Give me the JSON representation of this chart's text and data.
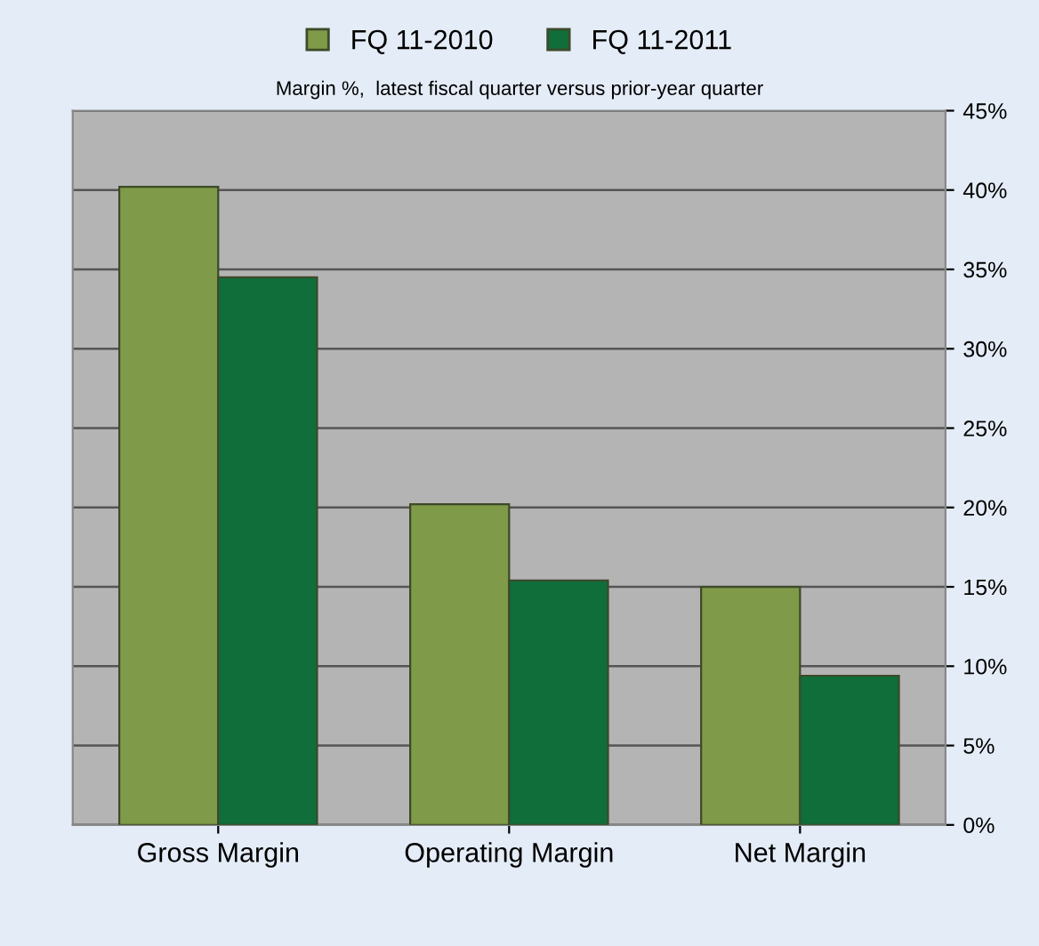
{
  "chart_data": {
    "type": "bar",
    "subtitle": "Margin %,  latest fiscal quarter versus prior-year quarter",
    "categories": [
      "Gross Margin",
      "Operating Margin",
      "Net Margin"
    ],
    "series": [
      {
        "name": "FQ 11-2010",
        "color": "#7f9a48",
        "values": [
          40.2,
          20.2,
          15.0
        ]
      },
      {
        "name": "FQ 11-2011",
        "color": "#0f6e3a",
        "values": [
          34.5,
          15.4,
          9.4
        ]
      }
    ],
    "ylim": [
      0,
      45
    ],
    "yticks": [
      {
        "value": 0,
        "label": "0%"
      },
      {
        "value": 5,
        "label": "5%"
      },
      {
        "value": 10,
        "label": "10%"
      },
      {
        "value": 15,
        "label": "15%"
      },
      {
        "value": 20,
        "label": "20%"
      },
      {
        "value": 25,
        "label": "25%"
      },
      {
        "value": 30,
        "label": "30%"
      },
      {
        "value": 35,
        "label": "35%"
      },
      {
        "value": 40,
        "label": "40%"
      },
      {
        "value": 45,
        "label": "45%"
      }
    ],
    "grid": "y",
    "legend": "top"
  }
}
